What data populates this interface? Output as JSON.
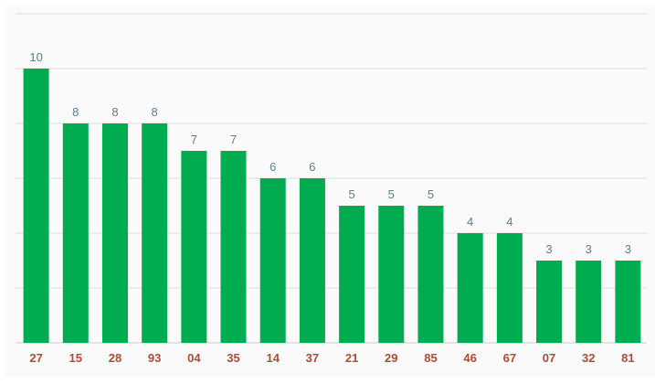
{
  "chart_data": {
    "type": "bar",
    "categories": [
      "27",
      "15",
      "28",
      "93",
      "04",
      "35",
      "14",
      "37",
      "21",
      "29",
      "85",
      "46",
      "67",
      "07",
      "32",
      "81"
    ],
    "values": [
      10,
      8,
      8,
      8,
      7,
      7,
      6,
      6,
      5,
      5,
      5,
      4,
      4,
      3,
      3,
      3
    ],
    "title": "",
    "xlabel": "",
    "ylabel": "",
    "ylim": [
      0,
      12
    ],
    "grid": true,
    "legend": "none"
  },
  "colors": {
    "bar": "#00ac4f",
    "value_label": "#5f7d8c",
    "category_label": "#b04a34",
    "gridline": "#dddddd",
    "axis": "#cccccc",
    "background": "#fafafa"
  }
}
